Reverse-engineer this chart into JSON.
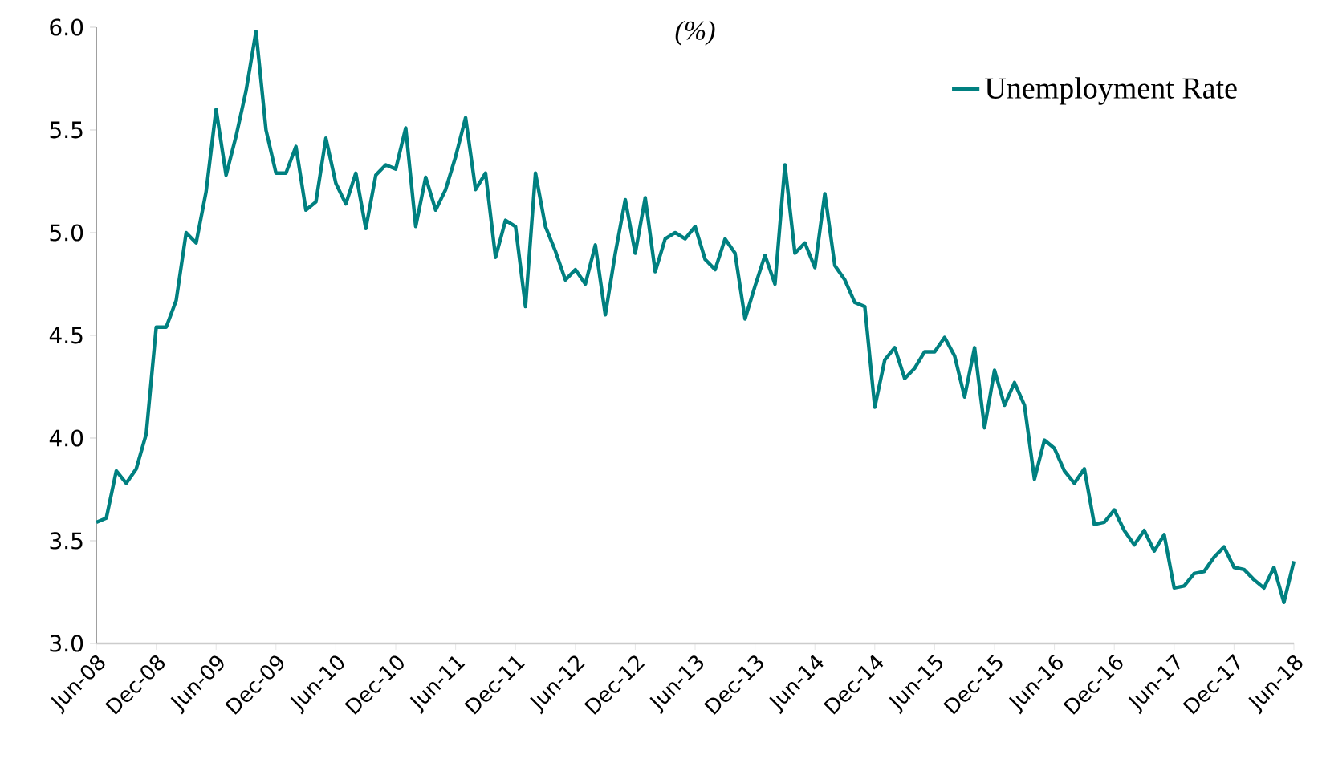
{
  "chart_data": {
    "type": "line",
    "title": "(%)",
    "categories": [
      "Jun-08",
      null,
      null,
      null,
      null,
      null,
      "Dec-08",
      null,
      null,
      null,
      null,
      null,
      "Jun-09",
      null,
      null,
      null,
      null,
      null,
      "Dec-09",
      null,
      null,
      null,
      null,
      null,
      "Jun-10",
      null,
      null,
      null,
      null,
      null,
      "Dec-10",
      null,
      null,
      null,
      null,
      null,
      "Jun-11",
      null,
      null,
      null,
      null,
      null,
      "Dec-11",
      null,
      null,
      null,
      null,
      null,
      "Jun-12",
      null,
      null,
      null,
      null,
      null,
      "Dec-12",
      null,
      null,
      null,
      null,
      null,
      "Jun-13",
      null,
      null,
      null,
      null,
      null,
      "Dec-13",
      null,
      null,
      null,
      null,
      null,
      "Jun-14",
      null,
      null,
      null,
      null,
      null,
      "Dec-14",
      null,
      null,
      null,
      null,
      null,
      "Jun-15",
      null,
      null,
      null,
      null,
      null,
      "Dec-15",
      null,
      null,
      null,
      null,
      null,
      "Jun-16",
      null,
      null,
      null,
      null,
      null,
      "Dec-16",
      null,
      null,
      null,
      null,
      null,
      "Jun-17",
      null,
      null,
      null,
      null,
      null,
      "Dec-17",
      null,
      null,
      null,
      null,
      null,
      "Jun-18"
    ],
    "series": [
      {
        "name": "Unemployment Rate",
        "color": "#008080",
        "values": [
          3.59,
          3.61,
          3.84,
          3.78,
          3.85,
          4.02,
          4.54,
          4.54,
          4.67,
          5.0,
          4.95,
          5.2,
          5.6,
          5.28,
          5.47,
          5.69,
          5.98,
          5.5,
          5.29,
          5.29,
          5.42,
          5.11,
          5.15,
          5.46,
          5.24,
          5.14,
          5.29,
          5.02,
          5.28,
          5.33,
          5.31,
          5.51,
          5.03,
          5.27,
          5.11,
          5.21,
          5.37,
          5.56,
          5.21,
          5.29,
          4.88,
          5.06,
          5.03,
          4.64,
          5.29,
          5.03,
          4.91,
          4.77,
          4.82,
          4.75,
          4.94,
          4.6,
          4.9,
          5.16,
          4.9,
          5.17,
          4.81,
          4.97,
          5.0,
          4.97,
          5.03,
          4.87,
          4.82,
          4.97,
          4.9,
          4.58,
          4.74,
          4.89,
          4.75,
          5.33,
          4.9,
          4.95,
          4.83,
          5.19,
          4.84,
          4.77,
          4.66,
          4.64,
          4.15,
          4.38,
          4.44,
          4.29,
          4.34,
          4.42,
          4.42,
          4.49,
          4.4,
          4.2,
          4.44,
          4.05,
          4.33,
          4.16,
          4.27,
          4.16,
          3.8,
          3.99,
          3.95,
          3.84,
          3.78,
          3.85,
          3.58,
          3.59,
          3.65,
          3.55,
          3.48,
          3.55,
          3.45,
          3.53,
          3.27,
          3.28,
          3.34,
          3.35,
          3.42,
          3.47,
          3.37,
          3.36,
          3.31,
          3.27,
          3.37,
          3.2,
          3.4
        ]
      }
    ],
    "ylim": [
      3.0,
      6.0
    ],
    "yticks": [
      {
        "value": 3.0,
        "label": "3.0"
      },
      {
        "value": 3.5,
        "label": "3.5"
      },
      {
        "value": 4.0,
        "label": "4.0"
      },
      {
        "value": 4.5,
        "label": "4.5"
      },
      {
        "value": 5.0,
        "label": "5.0"
      },
      {
        "value": 5.5,
        "label": "5.5"
      },
      {
        "value": 6.0,
        "label": "6.0"
      }
    ],
    "legend": "top right",
    "grid": false,
    "marker": "none",
    "line_style": "solid"
  }
}
